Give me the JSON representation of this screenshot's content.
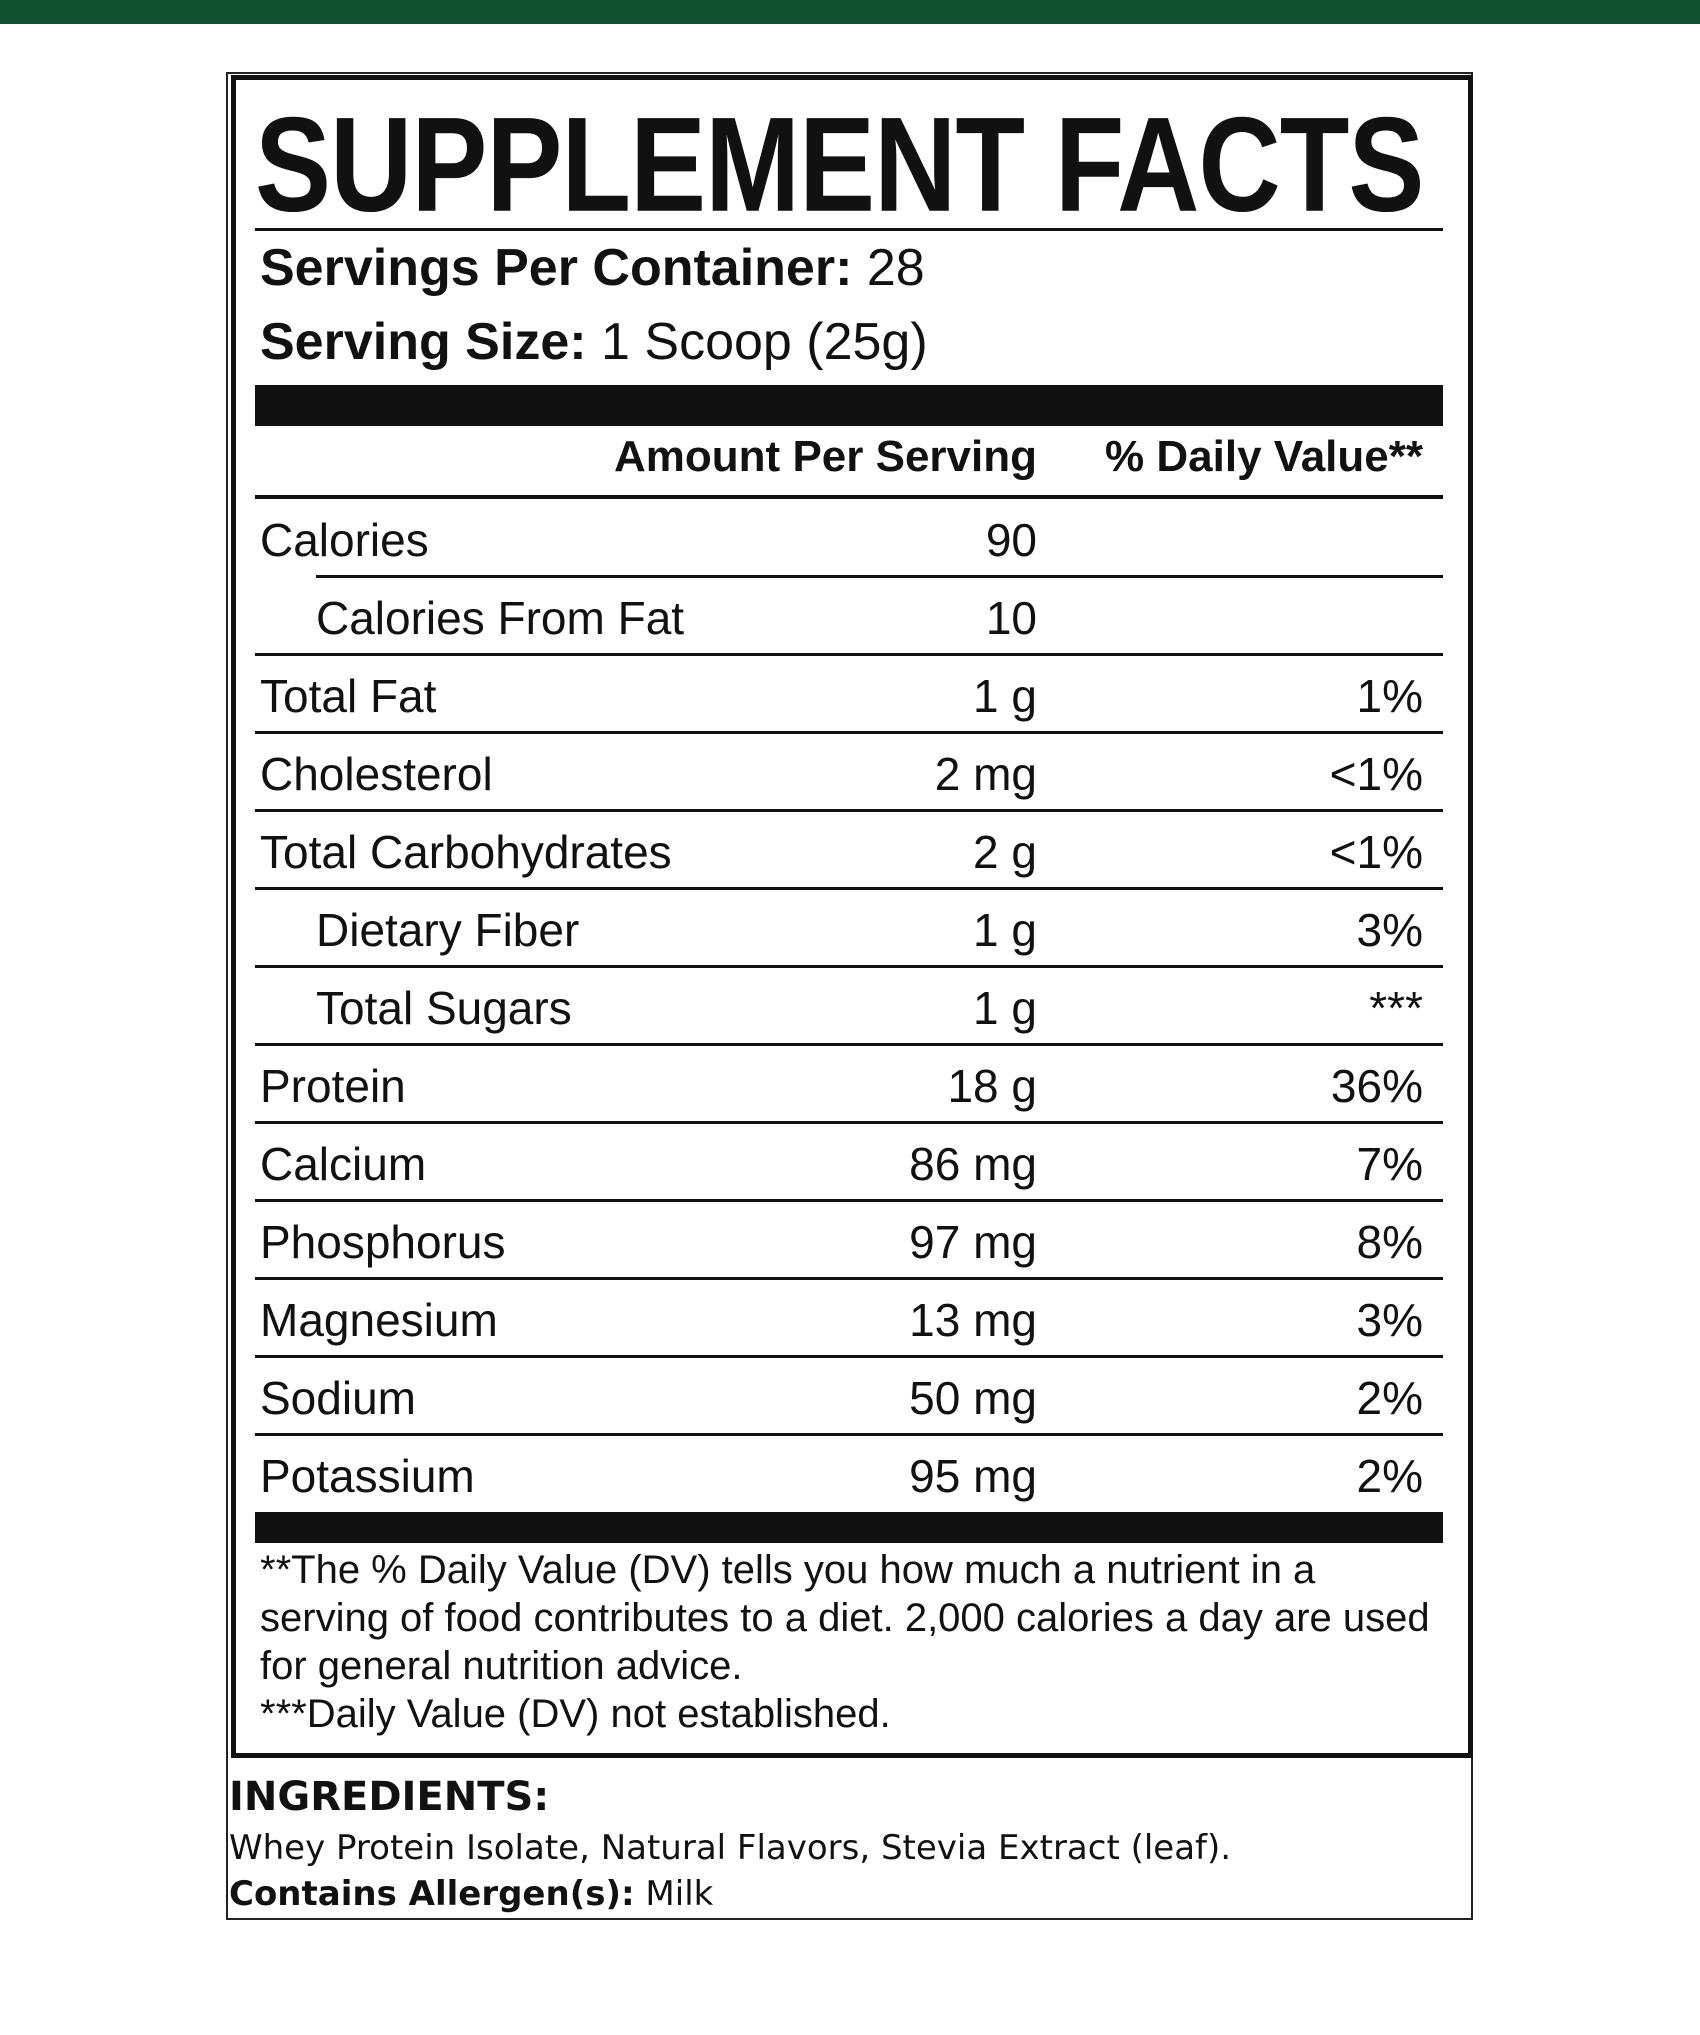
{
  "title": "SUPPLEMENT FACTS",
  "servings": {
    "label": "Servings Per Container:",
    "value": "28"
  },
  "serving_size": {
    "label": "Serving Size:",
    "value": "1 Scoop (25g)"
  },
  "columns": {
    "amount": "Amount Per Serving",
    "dv": "% Daily Value**"
  },
  "rows": [
    {
      "name": "Calories",
      "amount": "90",
      "dv": null,
      "indent": false
    },
    {
      "name": "Calories From Fat",
      "amount": "10",
      "dv": null,
      "indent": true
    },
    {
      "name": "Total Fat",
      "amount": "1 g",
      "dv": "1%",
      "indent": false
    },
    {
      "name": "Cholesterol",
      "amount": "2 mg",
      "dv": "<1%",
      "indent": false
    },
    {
      "name": "Total Carbohydrates",
      "amount": "2 g",
      "dv": "<1%",
      "indent": false
    },
    {
      "name": "Dietary Fiber",
      "amount": "1 g",
      "dv": "3%",
      "indent": true
    },
    {
      "name": "Total Sugars",
      "amount": "1 g",
      "dv": "***",
      "indent": true
    },
    {
      "name": "Protein",
      "amount": "18 g",
      "dv": "36%",
      "indent": false
    },
    {
      "name": "Calcium",
      "amount": "86 mg",
      "dv": "7%",
      "indent": false
    },
    {
      "name": "Phosphorus",
      "amount": "97 mg",
      "dv": "8%",
      "indent": false
    },
    {
      "name": "Magnesium",
      "amount": "13 mg",
      "dv": "3%",
      "indent": false
    },
    {
      "name": "Sodium",
      "amount": "50 mg",
      "dv": "2%",
      "indent": false
    },
    {
      "name": "Potassium",
      "amount": "95 mg",
      "dv": "2%",
      "indent": false
    }
  ],
  "footnotes": [
    "**The % Daily Value (DV) tells you how much a nutrient in a serving of food contributes to a diet. 2,000 calories a day are used for general nutrition advice.",
    "***Daily Value (DV) not established."
  ],
  "ingredients": {
    "label": "INGREDIENTS:",
    "text": "Whey Protein Isolate, Natural Flavors, Stevia Extract (leaf).",
    "allergen_label": "Contains Allergen(s):",
    "allergen_value": "Milk"
  }
}
